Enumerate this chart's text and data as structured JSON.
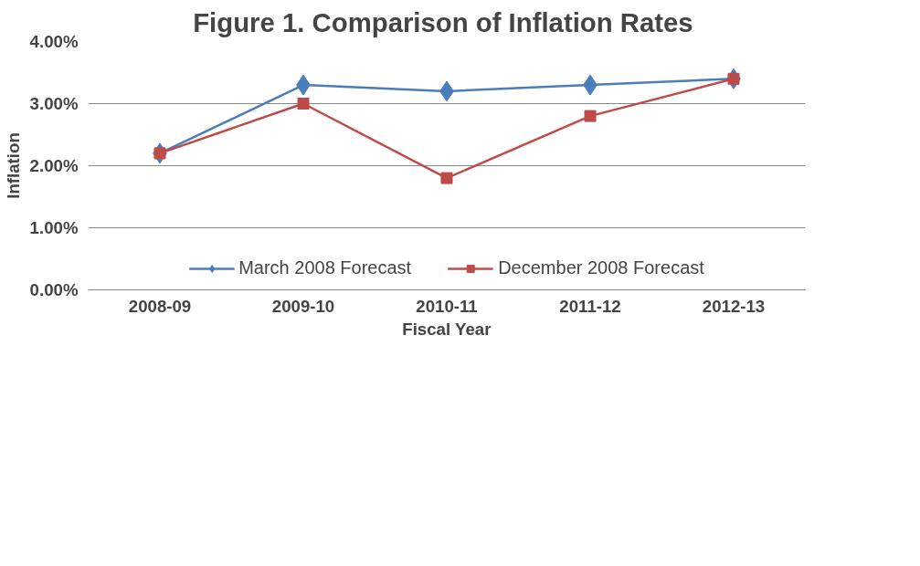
{
  "chart_data": {
    "type": "line",
    "title": "Figure 1.  Comparison of Inflation Rates",
    "xlabel": "Fiscal Year",
    "ylabel": "Inflation",
    "categories": [
      "2008-09",
      "2009-10",
      "2010-11",
      "2011-12",
      "2012-13"
    ],
    "series": [
      {
        "name": "March 2008 Forecast",
        "color": "#4a7ebb",
        "marker": "diamond",
        "values": [
          2.2,
          3.3,
          3.2,
          3.3,
          3.4
        ]
      },
      {
        "name": "December 2008 Forecast",
        "color": "#be4b48",
        "marker": "square",
        "values": [
          2.2,
          3.0,
          1.8,
          2.8,
          3.4
        ]
      }
    ],
    "ylim": [
      0,
      4
    ],
    "yticks": [
      {
        "value": 0,
        "label": "0.00%"
      },
      {
        "value": 1,
        "label": "1.00%"
      },
      {
        "value": 2,
        "label": "2.00%"
      },
      {
        "value": 3,
        "label": "3.00%"
      },
      {
        "value": 4,
        "label": "4.00%"
      }
    ],
    "grid": "y",
    "legend": "bottom",
    "line_style": "solid"
  }
}
